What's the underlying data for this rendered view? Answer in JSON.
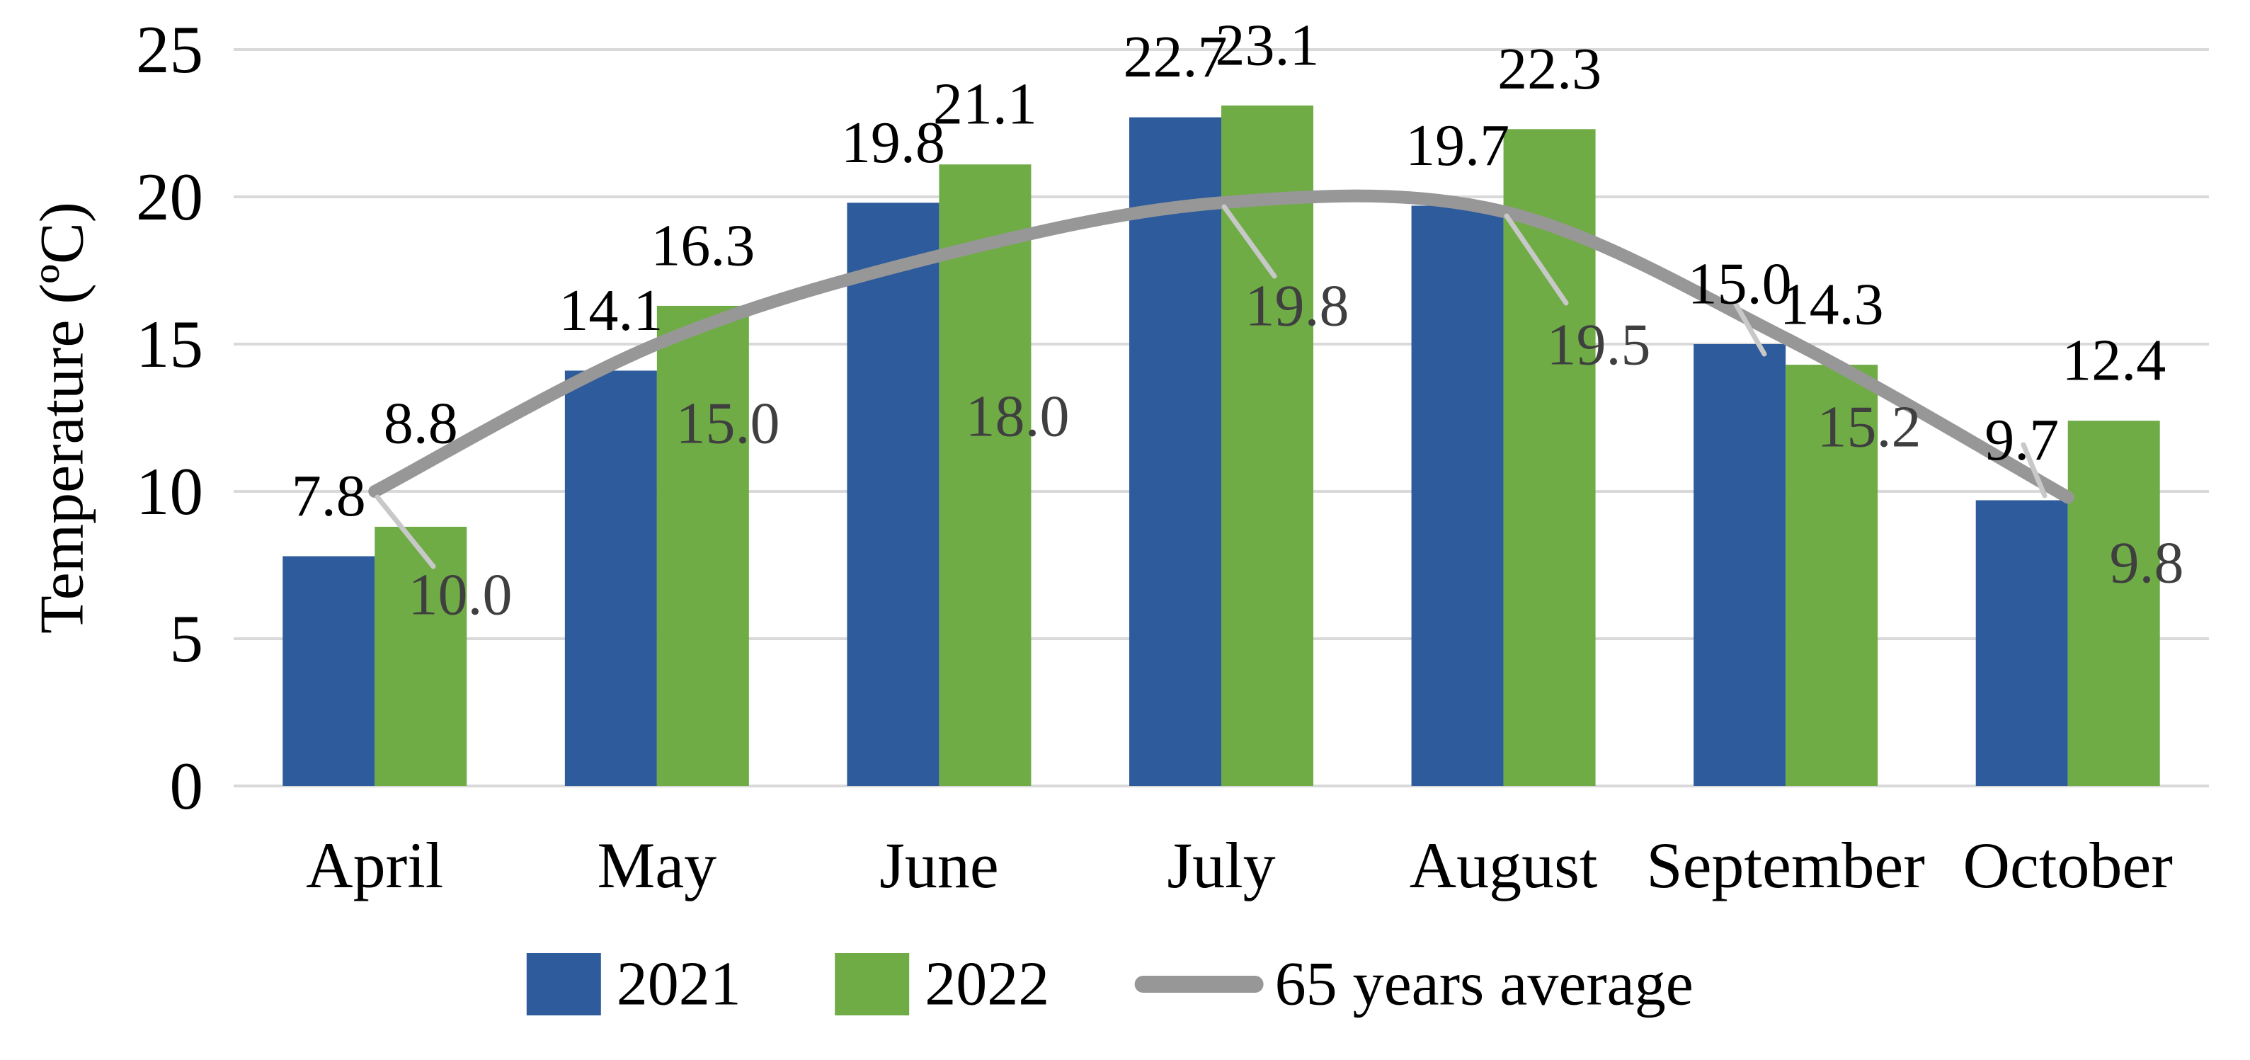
{
  "chart_data": {
    "type": "bar",
    "subtype": "grouped-bars-with-line-overlay",
    "categories": [
      "April",
      "May",
      "June",
      "July",
      "August",
      "September",
      "October"
    ],
    "series": [
      {
        "name": "2021",
        "kind": "bar",
        "color": "#2E5B9C",
        "values": [
          7.8,
          14.1,
          19.8,
          22.7,
          19.7,
          15.0,
          9.7
        ],
        "labels": [
          "7.8",
          "14.1",
          "19.8",
          "22.7",
          "19.7",
          "15.0",
          "9.7"
        ]
      },
      {
        "name": "2022",
        "kind": "bar",
        "color": "#6FAC46",
        "values": [
          8.8,
          16.3,
          21.1,
          23.1,
          22.3,
          14.3,
          12.4
        ],
        "labels": [
          "8.8",
          "16.3",
          "21.1",
          "23.1",
          "22.3",
          "14.3",
          "12.4"
        ]
      },
      {
        "name": "65 years average",
        "kind": "line",
        "color": "#979797",
        "label_color": "#3F3F3F",
        "smoothed": true,
        "values": [
          10.0,
          15.0,
          18.0,
          19.8,
          19.5,
          15.2,
          9.8
        ],
        "labels": [
          "10.0",
          "15.0",
          "18.0",
          "19.8",
          "19.5",
          "15.2",
          "9.8"
        ]
      }
    ],
    "title": "",
    "xlabel": "",
    "ylabel": "Temperature (ºC)",
    "ylim": [
      0,
      25
    ],
    "yticks": [
      "0",
      "5",
      "10",
      "15",
      "20",
      "25"
    ],
    "grid": true,
    "gridline_color": "#D9D9D9",
    "bar_label_color": "#000000",
    "leader_line_color": "#C8C8C8",
    "legend_position": "bottom",
    "legend": [
      {
        "label": "2021",
        "swatch": "square",
        "color": "#2E5B9C"
      },
      {
        "label": "2022",
        "swatch": "square",
        "color": "#6FAC46"
      },
      {
        "label": "65 years average",
        "swatch": "line",
        "color": "#979797"
      }
    ]
  }
}
